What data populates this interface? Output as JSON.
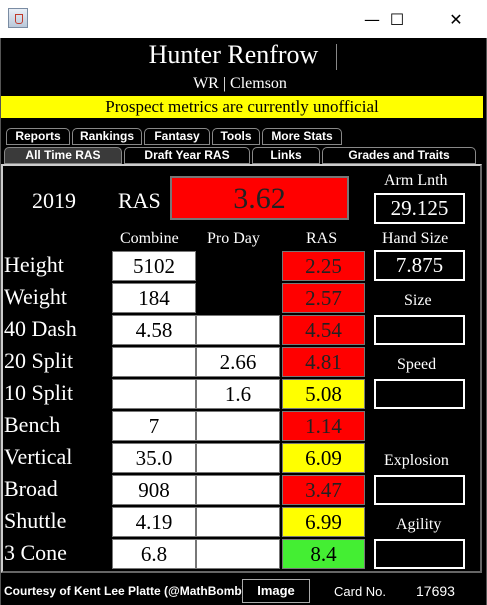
{
  "window": {
    "minimize": "—",
    "maximize": "☐",
    "close": "✕"
  },
  "player": {
    "name": "Hunter Renfrow",
    "position_school": "WR | Clemson"
  },
  "banner": "Prospect metrics are currently unofficial",
  "tabs_row1": [
    "Reports",
    "Rankings",
    "Fantasy",
    "Tools",
    "More Stats"
  ],
  "tabs_row2": [
    "All Time RAS",
    "Draft Year RAS",
    "Links",
    "Grades and Traits"
  ],
  "ras": {
    "year": "2019",
    "label": "RAS",
    "value": "3.62"
  },
  "arm": {
    "label": "Arm Lnth",
    "value": "29.125"
  },
  "hand": {
    "label": "Hand Size",
    "value": "7.875"
  },
  "columns": {
    "combine": "Combine",
    "proday": "Pro Day",
    "ras": "RAS"
  },
  "rows": [
    {
      "label": "Height",
      "combine": "5102",
      "proday": "",
      "ras": "2.25",
      "color": "red"
    },
    {
      "label": "Weight",
      "combine": "184",
      "proday": "",
      "ras": "2.57",
      "color": "red"
    },
    {
      "label": "40 Dash",
      "combine": "4.58",
      "proday": "",
      "ras": "4.54",
      "color": "red"
    },
    {
      "label": "20 Split",
      "combine": "",
      "proday": "2.66",
      "ras": "4.81",
      "color": "red"
    },
    {
      "label": "10 Split",
      "combine": "",
      "proday": "1.6",
      "ras": "5.08",
      "color": "yellow"
    },
    {
      "label": "Bench",
      "combine": "7",
      "proday": "",
      "ras": "1.14",
      "color": "red"
    },
    {
      "label": "Vertical",
      "combine": "35.0",
      "proday": "",
      "ras": "6.09",
      "color": "yellow"
    },
    {
      "label": "Broad",
      "combine": "908",
      "proday": "",
      "ras": "3.47",
      "color": "red"
    },
    {
      "label": "Shuttle",
      "combine": "4.19",
      "proday": "",
      "ras": "6.99",
      "color": "yellow"
    },
    {
      "label": "3 Cone",
      "combine": "6.8",
      "proday": "",
      "ras": "8.4",
      "color": "green"
    }
  ],
  "grades": {
    "size": "Size",
    "speed": "Speed",
    "explosion": "Explosion",
    "agility": "Agility"
  },
  "footer": {
    "credit": "Courtesy of Kent Lee Platte (@MathBomb)",
    "image_button": "Image",
    "card_label": "Card No.",
    "card_number": "17693"
  },
  "colors": {
    "red": "#ff0000",
    "yellow": "#ffff00",
    "green": "#44ee33",
    "banner": "#ffff00"
  }
}
